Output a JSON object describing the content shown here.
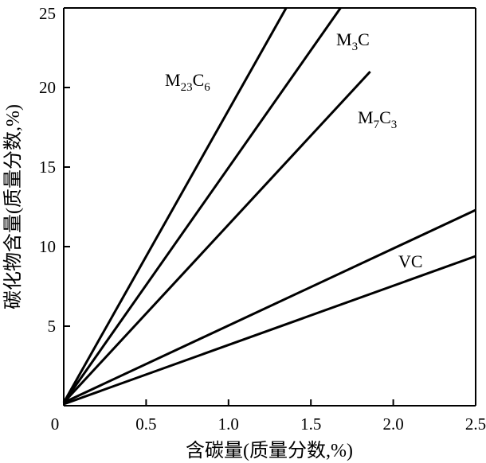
{
  "chart_data": {
    "type": "line",
    "xlabel": "含碳量(质量分数,%)",
    "ylabel": "碳化物含量(质量分数,%)",
    "xlim": [
      0,
      2.5
    ],
    "ylim": [
      0,
      25
    ],
    "x_ticks": [
      {
        "value": 0,
        "label": "0"
      },
      {
        "value": 0.5,
        "label": "0.5"
      },
      {
        "value": 1.0,
        "label": "1.0"
      },
      {
        "value": 1.5,
        "label": "1.5"
      },
      {
        "value": 2.0,
        "label": "2.0"
      },
      {
        "value": 2.5,
        "label": "2.5"
      }
    ],
    "y_ticks": [
      {
        "value": 5,
        "label": "5"
      },
      {
        "value": 10,
        "label": "10"
      },
      {
        "value": 15,
        "label": "15"
      },
      {
        "value": 20,
        "label": "20"
      },
      {
        "value": 25,
        "label": "25"
      }
    ],
    "grid": false,
    "series": [
      {
        "name": "M23C6",
        "label_main": "M",
        "label_sub1": "23",
        "label_mid": "C",
        "label_sub2": "6",
        "points": [
          [
            0,
            0.2
          ],
          [
            1.35,
            25.0
          ]
        ]
      },
      {
        "name": "M3C",
        "label_main": "M",
        "label_sub1": "3",
        "label_mid": "C",
        "label_sub2": "",
        "points": [
          [
            0,
            0.2
          ],
          [
            1.68,
            25.0
          ]
        ]
      },
      {
        "name": "M7C3",
        "label_main": "M",
        "label_sub1": "7",
        "label_mid": "C",
        "label_sub2": "3",
        "points": [
          [
            0,
            0.2
          ],
          [
            1.86,
            21.0
          ]
        ]
      },
      {
        "name": "VC",
        "label_main": "VC",
        "label_sub1": "",
        "label_mid": "",
        "label_sub2": "",
        "points": [
          [
            0,
            0.2
          ],
          [
            2.5,
            12.3
          ]
        ]
      },
      {
        "name": "",
        "points": [
          [
            0,
            0.1
          ],
          [
            2.5,
            9.4
          ]
        ]
      }
    ]
  }
}
